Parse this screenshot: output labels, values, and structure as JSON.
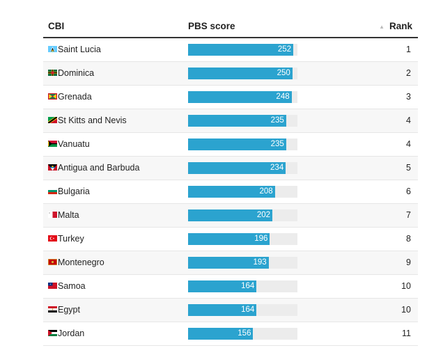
{
  "table": {
    "headers": {
      "cbi": "CBI",
      "score": "PBS score",
      "rank": "Rank"
    },
    "sort_icon": "sort-ascending-icon"
  },
  "chart_data": {
    "type": "bar",
    "orientation": "horizontal",
    "title": "",
    "xlabel": "PBS score",
    "ylabel": "CBI",
    "xlim": [
      0,
      262
    ],
    "categories": [
      "Saint Lucia",
      "Dominica",
      "Grenada",
      "St Kitts and Nevis",
      "Vanuatu",
      "Antigua and Barbuda",
      "Bulgaria",
      "Malta",
      "Turkey",
      "Montenegro",
      "Samoa",
      "Egypt",
      "Jordan"
    ],
    "values": [
      252,
      250,
      248,
      235,
      235,
      234,
      208,
      202,
      196,
      193,
      164,
      164,
      156
    ],
    "ranks": [
      1,
      2,
      3,
      4,
      4,
      5,
      6,
      7,
      8,
      9,
      10,
      10,
      11
    ],
    "bar_color": "#2ba3cf",
    "track_color": "#ececec",
    "flag_icons": [
      "saint-lucia-flag-icon",
      "dominica-flag-icon",
      "grenada-flag-icon",
      "st-kitts-and-nevis-flag-icon",
      "vanuatu-flag-icon",
      "antigua-and-barbuda-flag-icon",
      "bulgaria-flag-icon",
      "malta-flag-icon",
      "turkey-flag-icon",
      "montenegro-flag-icon",
      "samoa-flag-icon",
      "egypt-flag-icon",
      "jordan-flag-icon"
    ]
  }
}
